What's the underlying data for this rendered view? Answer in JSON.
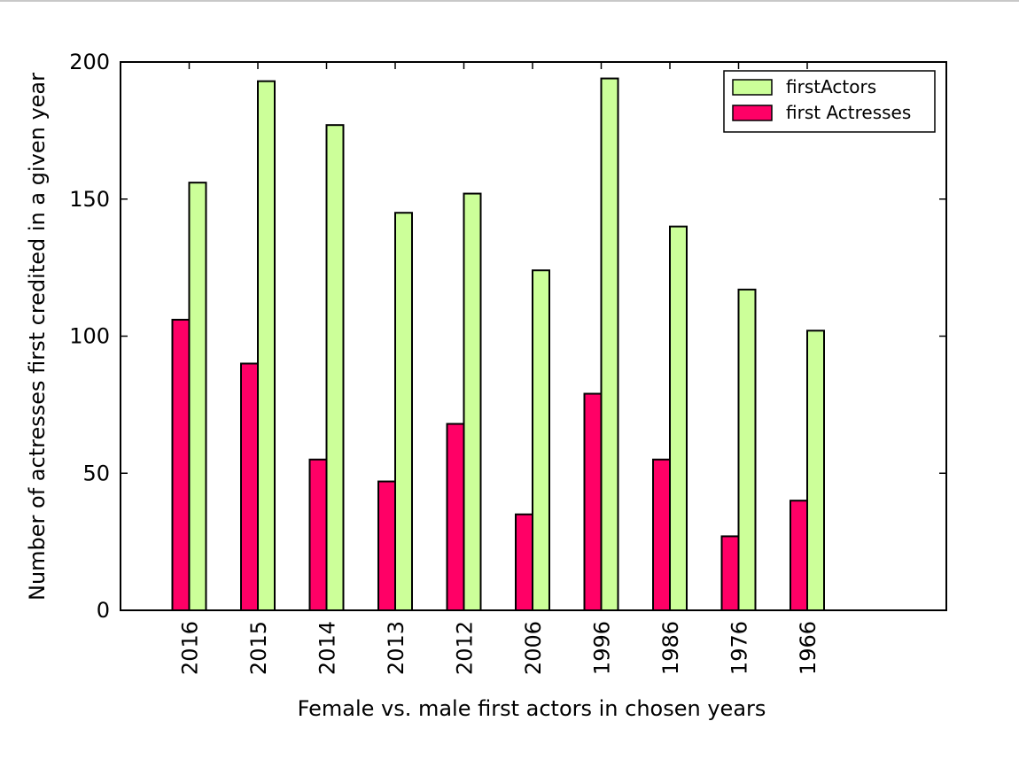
{
  "chart_data": {
    "type": "bar",
    "title": "",
    "xlabel": "Female vs. male first actors in chosen years",
    "ylabel": "Number of actresses first credited in a given year",
    "categories": [
      "2016",
      "2015",
      "2014",
      "2013",
      "2012",
      "2006",
      "1996",
      "1986",
      "1976",
      "1966"
    ],
    "series": [
      {
        "name": "firstActors",
        "color": "#ccff99",
        "values": [
          156,
          193,
          177,
          145,
          152,
          124,
          194,
          140,
          117,
          102
        ]
      },
      {
        "name": "first Actresses",
        "color": "#ff0066",
        "values": [
          106,
          90,
          55,
          47,
          68,
          35,
          79,
          55,
          27,
          40
        ]
      }
    ],
    "ylim": [
      0,
      200
    ],
    "yticks": [
      0,
      50,
      100,
      150,
      200
    ],
    "legend_position": "top-right",
    "grid": false
  }
}
